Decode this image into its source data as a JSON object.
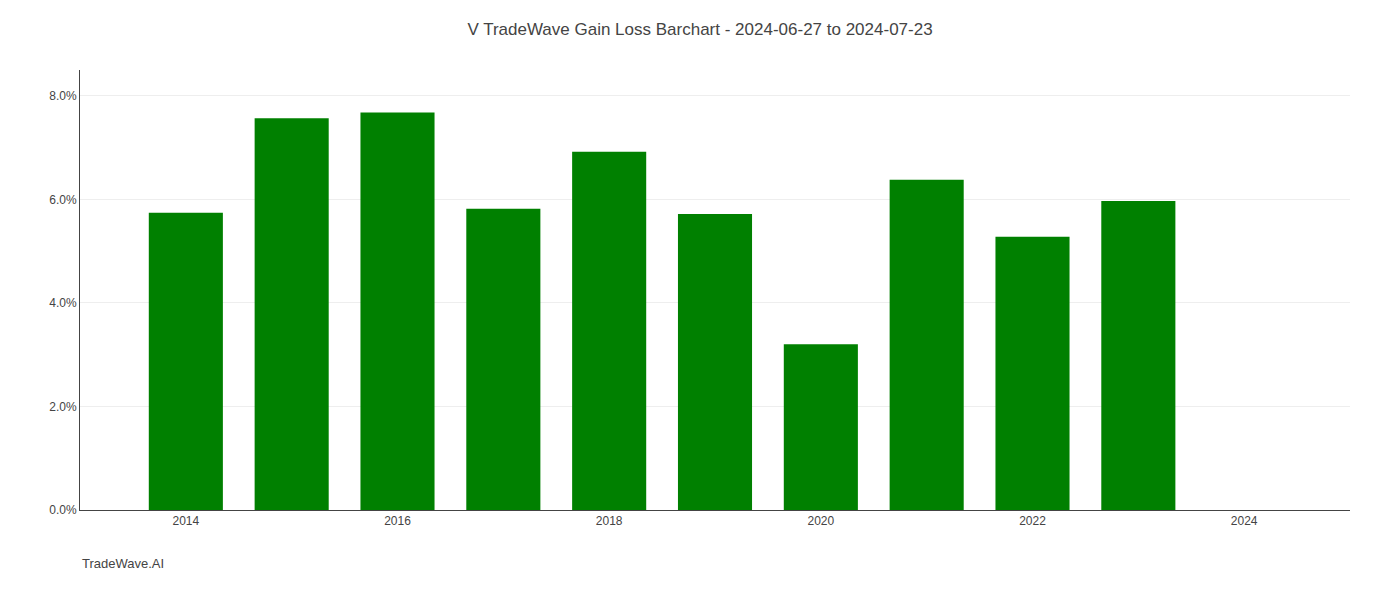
{
  "chart_data": {
    "type": "bar",
    "title": "V TradeWave Gain Loss Barchart - 2024-06-27 to 2024-07-23",
    "annotations": [
      "TradeWave.AI"
    ],
    "x": [
      2014,
      2015,
      2016,
      2017,
      2018,
      2019,
      2020,
      2021,
      2022,
      2023
    ],
    "values": [
      0.0574,
      0.0757,
      0.0768,
      0.0582,
      0.0692,
      0.0572,
      0.032,
      0.0638,
      0.0528,
      0.0597
    ],
    "color": "#008000",
    "xlim": [
      2013,
      2025
    ],
    "xticks": [
      2014,
      2016,
      2018,
      2020,
      2022,
      2024
    ],
    "ylim": [
      0,
      0.085
    ],
    "yticks": [
      {
        "value": 0.0,
        "label": "0.0%"
      },
      {
        "value": 0.02,
        "label": "2.0%"
      },
      {
        "value": 0.04,
        "label": "4.0%"
      },
      {
        "value": 0.06,
        "label": "6.0%"
      },
      {
        "value": 0.08,
        "label": "8.0%"
      }
    ],
    "grid": true
  }
}
